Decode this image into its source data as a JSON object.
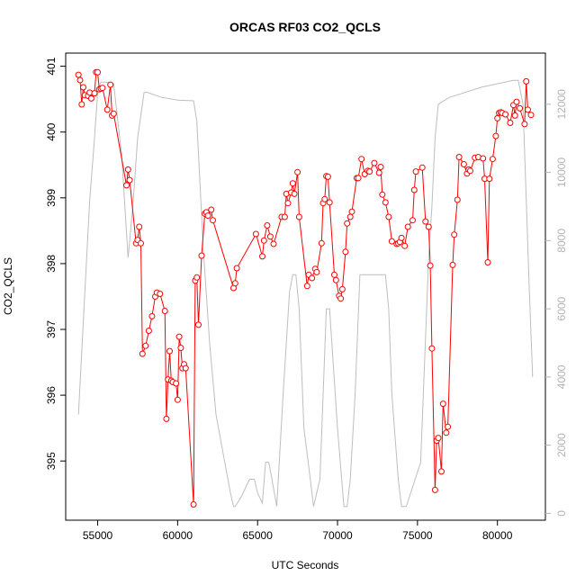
{
  "chart_data": {
    "type": "line",
    "title": "ORCAS RF03 CO2_QCLS",
    "xlabel": "UTC Seconds",
    "ylabel": "CO2_QCLS",
    "xlim": [
      53000,
      83000
    ],
    "ylim": [
      394.1,
      401.2
    ],
    "y2lim": [
      -200,
      13500
    ],
    "x_ticks": [
      55000,
      60000,
      65000,
      70000,
      75000,
      80000
    ],
    "y_ticks": [
      395,
      396,
      397,
      398,
      399,
      400,
      401
    ],
    "y2_ticks": [
      0,
      2000,
      4000,
      6000,
      8000,
      10000,
      12000
    ],
    "colors": {
      "primary": "#ff0000",
      "secondary": "#bebebe",
      "axis": "#000000",
      "right_axis": "#b3b3b3"
    },
    "series": [
      {
        "axis": "left",
        "color": "#ff0000",
        "marker": "open-circle",
        "x": [
          53800,
          53900,
          54000,
          54100,
          54200,
          54400,
          54500,
          54600,
          54800,
          54900,
          55000,
          55100,
          55200,
          55300,
          55600,
          55800,
          55900,
          56000,
          56800,
          56900,
          57000,
          57400,
          57500,
          57600,
          57700,
          57800,
          58000,
          58200,
          58400,
          58600,
          58700,
          58900,
          59200,
          59300,
          59400,
          59500,
          59600,
          59700,
          59900,
          60000,
          60100,
          60200,
          60300,
          60400,
          60500,
          61000,
          61100,
          61200,
          61300,
          61500,
          61700,
          61800,
          61900,
          62100,
          62200,
          63500,
          63600,
          63700,
          64900,
          65300,
          65400,
          65600,
          65800,
          66000,
          66500,
          66700,
          66800,
          66900,
          67100,
          67200,
          67300,
          67500,
          67600,
          68100,
          68200,
          68400,
          68600,
          68700,
          69000,
          69100,
          69200,
          69300,
          69400,
          69500,
          69800,
          69900,
          70100,
          70200,
          70300,
          70500,
          70600,
          70800,
          70900,
          71200,
          71300,
          71500,
          71700,
          71900,
          72000,
          72300,
          72600,
          72700,
          72800,
          73000,
          73200,
          73400,
          73700,
          73800,
          73900,
          74000,
          74200,
          74400,
          74700,
          74800,
          74900,
          75300,
          75500,
          75700,
          75800,
          75900,
          76100,
          76200,
          76300,
          76500,
          76600,
          76800,
          76900,
          77200,
          77300,
          77500,
          77600,
          77900,
          78100,
          78200,
          78300,
          78600,
          78800,
          79100,
          79200,
          79400,
          79500,
          79700,
          79900,
          80000,
          80100,
          80200,
          80300,
          80500,
          80800,
          81000,
          81100,
          81200,
          81400,
          81700,
          81800,
          81900,
          82100
        ],
        "y": [
          400.87,
          400.79,
          400.42,
          400.68,
          400.56,
          400.55,
          400.6,
          400.51,
          400.59,
          400.91,
          400.91,
          400.65,
          400.66,
          400.67,
          400.34,
          400.72,
          400.25,
          400.28,
          399.19,
          399.43,
          399.27,
          398.31,
          398.36,
          398.56,
          398.31,
          396.63,
          396.75,
          396.98,
          397.2,
          397.5,
          397.56,
          397.54,
          397.28,
          395.64,
          396.24,
          396.67,
          396.22,
          396.2,
          396.18,
          395.93,
          396.89,
          396.72,
          396.41,
          396.47,
          396.41,
          394.34,
          397.74,
          397.79,
          397.07,
          398.12,
          398.76,
          398.78,
          398.73,
          398.82,
          398.66,
          397.63,
          397.7,
          397.93,
          398.45,
          398.11,
          398.35,
          398.58,
          398.41,
          398.3,
          398.71,
          398.71,
          399.06,
          398.92,
          399.08,
          399.22,
          399.06,
          399.39,
          398.71,
          397.66,
          397.83,
          397.78,
          397.92,
          397.87,
          398.31,
          398.92,
          398.98,
          399.33,
          399.32,
          398.93,
          397.83,
          397.75,
          397.51,
          397.47,
          397.61,
          398.18,
          398.61,
          398.71,
          398.79,
          399.3,
          399.3,
          399.59,
          399.36,
          399.41,
          399.4,
          399.53,
          399.38,
          399.47,
          399.05,
          398.93,
          398.71,
          398.34,
          398.3,
          398.31,
          398.33,
          398.39,
          398.27,
          398.56,
          398.66,
          399.12,
          399.4,
          399.46,
          398.64,
          398.56,
          397.97,
          396.71,
          394.56,
          395.31,
          395.35,
          394.84,
          395.87,
          395.43,
          395.52,
          397.98,
          398.44,
          398.97,
          399.62,
          399.51,
          399.37,
          399.43,
          399.41,
          399.61,
          399.62,
          399.6,
          399.29,
          398.02,
          399.29,
          399.59,
          399.94,
          400.21,
          400.29,
          400.3,
          400.29,
          400.27,
          400.14,
          400.41,
          400.25,
          400.46,
          400.36,
          400.12,
          400.77,
          400.34,
          400.26
        ]
      },
      {
        "axis": "right",
        "color": "#bebebe",
        "marker": "none",
        "x": [
          53800,
          54200,
          54500,
          54800,
          55000,
          55200,
          55500,
          56000,
          56500,
          56900,
          57200,
          57500,
          57900,
          58100,
          59000,
          60000,
          61000,
          61200,
          61600,
          62000,
          62400,
          63300,
          63500,
          63600,
          64000,
          64500,
          64800,
          65000,
          65300,
          65500,
          65700,
          65900,
          66200,
          66600,
          67000,
          67200,
          67400,
          67600,
          67900,
          68300,
          68500,
          68900,
          69300,
          69500,
          70000,
          70400,
          70600,
          70800,
          71100,
          71400,
          71600,
          73000,
          73200,
          73400,
          73800,
          74000,
          74300,
          75200,
          75700,
          75900,
          76100,
          76300,
          77000,
          79000,
          81000,
          81300,
          81600,
          82000,
          82200
        ],
        "y": [
          2900,
          6500,
          9200,
          11000,
          12350,
          12650,
          12650,
          12600,
          10500,
          7500,
          9000,
          11000,
          12350,
          12350,
          12200,
          12120,
          12100,
          11500,
          7800,
          5000,
          2900,
          600,
          200,
          200,
          500,
          1000,
          1000,
          600,
          300,
          1500,
          1500,
          1000,
          200,
          3500,
          6500,
          7000,
          7000,
          6000,
          2500,
          1000,
          200,
          1000,
          6000,
          6000,
          2500,
          200,
          200,
          1000,
          3500,
          7000,
          7000,
          7000,
          6000,
          3500,
          1000,
          200,
          200,
          1500,
          7500,
          9000,
          11000,
          12000,
          12200,
          12500,
          12700,
          12700,
          12000,
          6500,
          4000
        ]
      }
    ]
  }
}
